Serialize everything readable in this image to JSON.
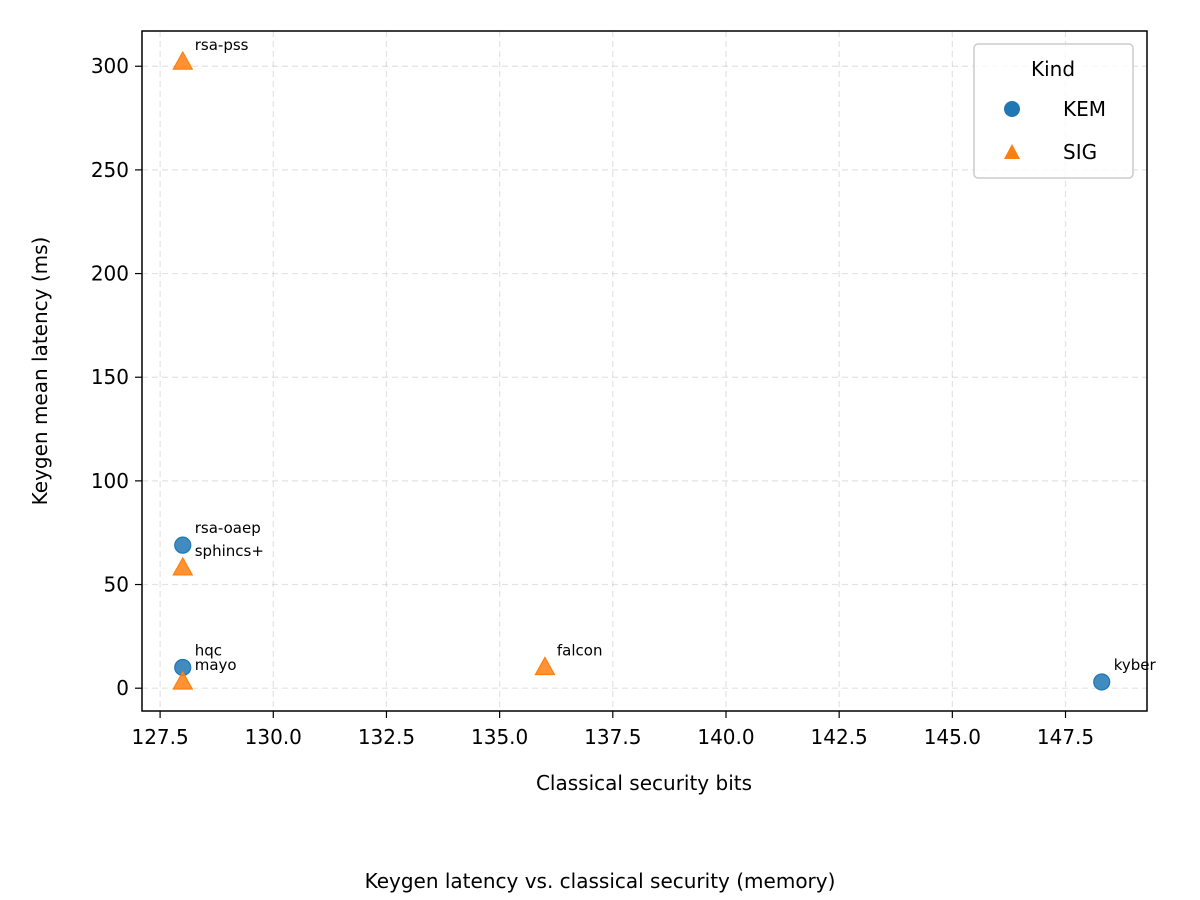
{
  "chart_data": {
    "type": "scatter",
    "xlabel": "Classical security bits",
    "ylabel": "Keygen mean latency (ms)",
    "caption": "Keygen latency vs. classical security (memory)",
    "xlim": [
      127.1,
      149.3
    ],
    "ylim": [
      -11,
      317
    ],
    "x_ticks": [
      127.5,
      130.0,
      132.5,
      135.0,
      137.5,
      140.0,
      142.5,
      145.0,
      147.5
    ],
    "x_tick_labels": [
      "127.5",
      "130.0",
      "132.5",
      "135.0",
      "137.5",
      "140.0",
      "142.5",
      "145.0",
      "147.5"
    ],
    "y_ticks": [
      0,
      50,
      100,
      150,
      200,
      250,
      300
    ],
    "y_tick_labels": [
      "0",
      "50",
      "100",
      "150",
      "200",
      "250",
      "300"
    ],
    "grid": true,
    "legend": {
      "title": "Kind",
      "placement": "top-right",
      "entries": [
        {
          "label": "KEM",
          "marker": "circle",
          "color": "#1f77b4"
        },
        {
          "label": "SIG",
          "marker": "triangle",
          "color": "#ff7f0e"
        }
      ]
    },
    "series": [
      {
        "name": "KEM",
        "marker": "circle",
        "color": "#1f77b4",
        "points": [
          {
            "x": 128,
            "y": 69,
            "label": "rsa-oaep"
          },
          {
            "x": 128,
            "y": 10,
            "label": "hqc"
          },
          {
            "x": 148.3,
            "y": 3,
            "label": "kyber"
          }
        ]
      },
      {
        "name": "SIG",
        "marker": "triangle",
        "color": "#ff7f0e",
        "points": [
          {
            "x": 128,
            "y": 302,
            "label": "rsa-pss"
          },
          {
            "x": 128,
            "y": 58,
            "label": "sphincs+"
          },
          {
            "x": 128,
            "y": 3,
            "label": "mayo"
          },
          {
            "x": 136,
            "y": 10,
            "label": "falcon"
          }
        ]
      }
    ]
  }
}
